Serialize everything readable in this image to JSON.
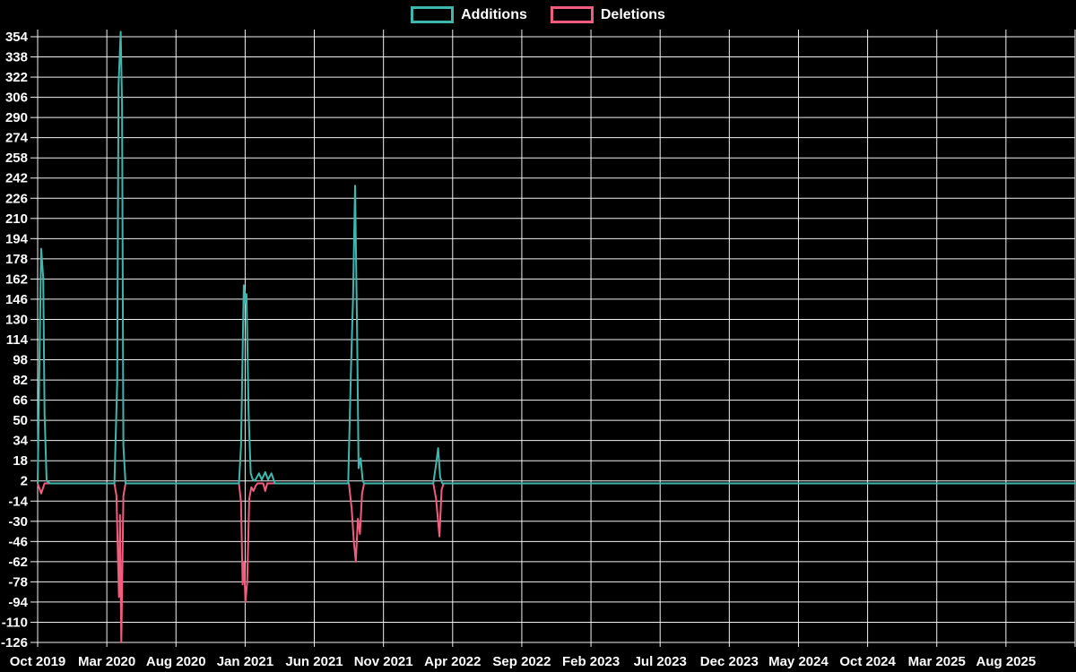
{
  "page": {
    "background": "#000000",
    "text_color": "#ffffff"
  },
  "legend": {
    "position": "top-center",
    "items": [
      {
        "label": "Additions",
        "color": "#3db8ae"
      },
      {
        "label": "Deletions",
        "color": "#f25c7e"
      }
    ]
  },
  "chart_data": {
    "type": "line",
    "title": "",
    "xlabel": "",
    "ylabel": "",
    "background": "#000000",
    "grid": true,
    "grid_color": "#f2f2f2",
    "axis_text_color": "#ffffff",
    "legend_position": "top-center",
    "x_axis": {
      "unit": "months since Oct 2019",
      "range": [
        0,
        75
      ],
      "ticks": [
        {
          "month": 0,
          "label": "Oct 2019"
        },
        {
          "month": 5,
          "label": "Mar 2020"
        },
        {
          "month": 10,
          "label": "Aug 2020"
        },
        {
          "month": 15,
          "label": "Jan 2021"
        },
        {
          "month": 20,
          "label": "Jun 2021"
        },
        {
          "month": 25,
          "label": "Nov 2021"
        },
        {
          "month": 30,
          "label": "Apr 2022"
        },
        {
          "month": 35,
          "label": "Sep 2022"
        },
        {
          "month": 40,
          "label": "Feb 2023"
        },
        {
          "month": 45,
          "label": "Jul 2023"
        },
        {
          "month": 50,
          "label": "Dec 2023"
        },
        {
          "month": 55,
          "label": "May 2024"
        },
        {
          "month": 60,
          "label": "Oct 2024"
        },
        {
          "month": 65,
          "label": "Mar 2025"
        },
        {
          "month": 70,
          "label": "Aug 2025"
        },
        {
          "month": 75,
          "label": ""
        }
      ]
    },
    "y_axis": {
      "min": -126,
      "max": 354,
      "tick_step": 16,
      "ticks": [
        354,
        338,
        322,
        306,
        290,
        274,
        258,
        242,
        226,
        210,
        194,
        178,
        162,
        146,
        130,
        114,
        98,
        82,
        66,
        50,
        34,
        18,
        2,
        -14,
        -30,
        -46,
        -62,
        -78,
        -94,
        -110,
        -126
      ]
    },
    "series": [
      {
        "name": "Deletions",
        "color": "#f25c7e",
        "points": [
          [
            0,
            0
          ],
          [
            0.25,
            -8
          ],
          [
            0.5,
            0
          ],
          [
            5.55,
            0
          ],
          [
            5.7,
            -10
          ],
          [
            5.8,
            -57
          ],
          [
            5.88,
            -90
          ],
          [
            5.95,
            -25
          ],
          [
            6.05,
            -126
          ],
          [
            6.2,
            -10
          ],
          [
            6.35,
            0
          ],
          [
            14.55,
            0
          ],
          [
            14.7,
            -15
          ],
          [
            14.82,
            -80
          ],
          [
            14.92,
            -62
          ],
          [
            15.02,
            -94
          ],
          [
            15.15,
            -78
          ],
          [
            15.3,
            -12
          ],
          [
            15.45,
            -3
          ],
          [
            15.6,
            -6
          ],
          [
            15.75,
            -2
          ],
          [
            15.9,
            0
          ],
          [
            16.3,
            0
          ],
          [
            16.45,
            -6
          ],
          [
            16.6,
            0
          ],
          [
            22.5,
            0
          ],
          [
            22.7,
            -20
          ],
          [
            22.85,
            -45
          ],
          [
            23.0,
            -62
          ],
          [
            23.15,
            -28
          ],
          [
            23.3,
            -40
          ],
          [
            23.45,
            -8
          ],
          [
            23.6,
            0
          ],
          [
            28.6,
            0
          ],
          [
            28.8,
            -12
          ],
          [
            28.95,
            -30
          ],
          [
            29.05,
            -42
          ],
          [
            29.2,
            -5
          ],
          [
            29.35,
            0
          ],
          [
            75,
            0
          ]
        ]
      },
      {
        "name": "Additions",
        "color": "#3db8ae",
        "points": [
          [
            0,
            0
          ],
          [
            0.25,
            186
          ],
          [
            0.4,
            163
          ],
          [
            0.5,
            55
          ],
          [
            0.65,
            2
          ],
          [
            0.9,
            0
          ],
          [
            5.55,
            0
          ],
          [
            5.75,
            80
          ],
          [
            5.85,
            315
          ],
          [
            6.0,
            358
          ],
          [
            6.1,
            300
          ],
          [
            6.2,
            30
          ],
          [
            6.35,
            0
          ],
          [
            14.55,
            0
          ],
          [
            14.7,
            30
          ],
          [
            14.8,
            92
          ],
          [
            14.9,
            157
          ],
          [
            15.0,
            143
          ],
          [
            15.1,
            150
          ],
          [
            15.25,
            55
          ],
          [
            15.4,
            8
          ],
          [
            15.55,
            3
          ],
          [
            15.7,
            2
          ],
          [
            16.0,
            8
          ],
          [
            16.2,
            3
          ],
          [
            16.45,
            9
          ],
          [
            16.65,
            3
          ],
          [
            16.9,
            8
          ],
          [
            17.15,
            0
          ],
          [
            22.45,
            0
          ],
          [
            22.65,
            90
          ],
          [
            22.8,
            146
          ],
          [
            22.95,
            236
          ],
          [
            23.1,
            110
          ],
          [
            23.2,
            12
          ],
          [
            23.35,
            20
          ],
          [
            23.5,
            2
          ],
          [
            23.6,
            0
          ],
          [
            28.6,
            0
          ],
          [
            28.8,
            15
          ],
          [
            28.95,
            28
          ],
          [
            29.1,
            5
          ],
          [
            29.25,
            0
          ],
          [
            75,
            0
          ]
        ]
      }
    ]
  }
}
